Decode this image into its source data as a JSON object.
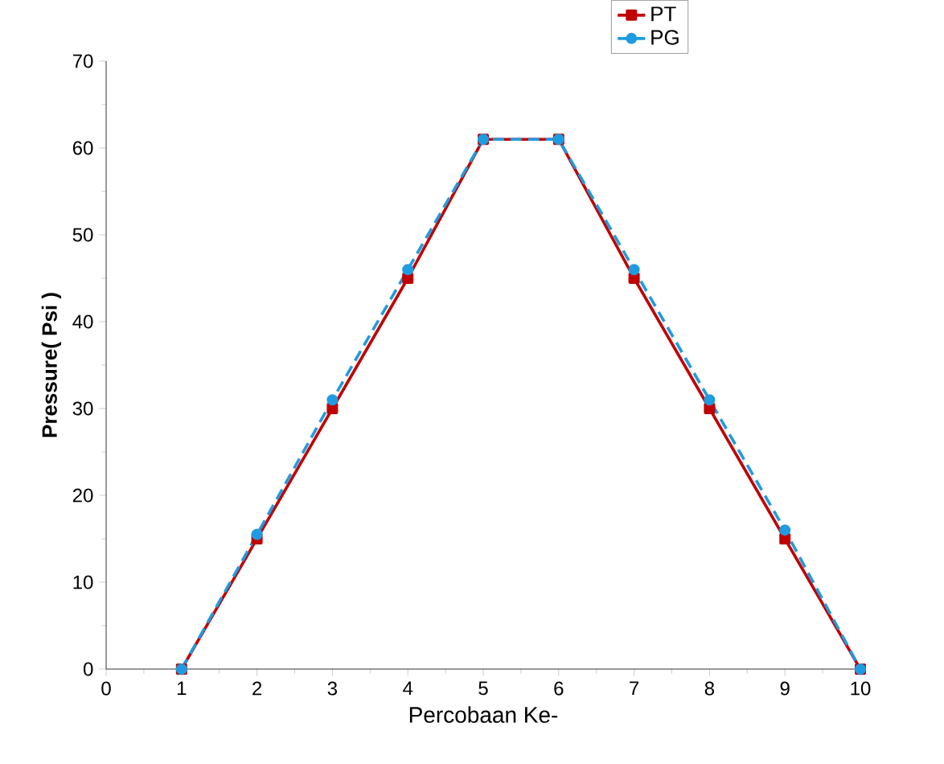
{
  "chart_data": {
    "type": "line",
    "xlabel": "Percobaan Ke-",
    "ylabel": "Pressure( Psi )",
    "x": [
      1,
      2,
      3,
      4,
      5,
      6,
      7,
      8,
      9,
      10
    ],
    "series": [
      {
        "name": "PT",
        "color": "#c00000",
        "marker": "square",
        "line_style": "solid",
        "values": [
          0,
          15,
          30,
          45,
          61,
          61,
          45,
          30,
          15,
          0
        ]
      },
      {
        "name": "PG",
        "color": "#1f9be0",
        "marker": "circle",
        "line_style": "dashed",
        "values": [
          0,
          15.5,
          31,
          46,
          61,
          61,
          46,
          31,
          16,
          0
        ]
      }
    ],
    "xlim": [
      0,
      10
    ],
    "xticks": [
      0,
      1,
      2,
      3,
      4,
      5,
      6,
      7,
      8,
      9,
      10
    ],
    "ylim": [
      0,
      70
    ],
    "yticks": [
      0,
      10,
      20,
      30,
      40,
      50,
      60,
      70
    ],
    "grid": false,
    "legend": "top right"
  }
}
